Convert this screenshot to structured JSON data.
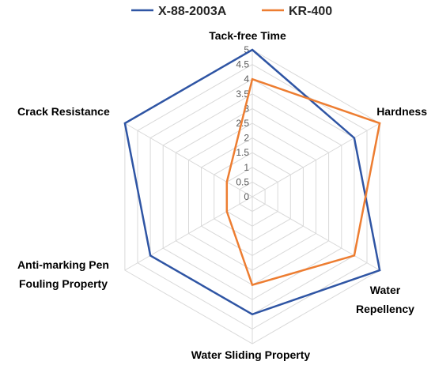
{
  "chart_data": {
    "type": "radar",
    "axes": [
      [
        "Tack-free Time"
      ],
      [
        "Hardness"
      ],
      [
        "Water",
        "Repellency"
      ],
      [
        "Water Sliding Property"
      ],
      [
        "Anti-marking Pen",
        "Fouling Property"
      ],
      [
        "Crack Resistance"
      ]
    ],
    "range": [
      0,
      5
    ],
    "ticks": [
      "0",
      "0.5",
      "1",
      "1.5",
      "2",
      "2.5",
      "3",
      "3.5",
      "4",
      "4.5",
      "5"
    ],
    "grid": true,
    "legend_position": "top",
    "series": [
      {
        "name": "X-88-2003A",
        "color": "#2f55a4",
        "values": [
          5,
          4,
          5,
          4,
          4,
          5
        ]
      },
      {
        "name": "KR-400",
        "color": "#ed7d31",
        "values": [
          4,
          5,
          4,
          3,
          1,
          1
        ]
      }
    ]
  }
}
